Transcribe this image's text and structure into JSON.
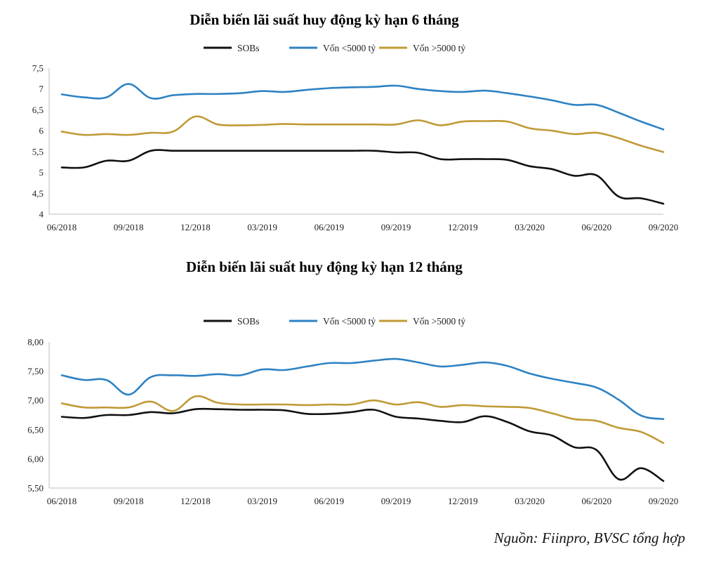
{
  "source": "Nguồn: Fiinpro, BVSC tổng hợp",
  "colors": {
    "SOBs": "#111111",
    "Vốn <5000 tỷ": "#2e82c3",
    "Vốn >5000 tỷ": "#bf9a36"
  },
  "chart_data": [
    {
      "type": "line",
      "title": "Diễn biến lãi suất huy động kỳ hạn 6 tháng",
      "xlabel": "",
      "ylabel": "",
      "ylim": [
        4,
        7.5
      ],
      "ytick_labels": [
        "4",
        "4,5",
        "5",
        "5,5",
        "6",
        "6,5",
        "7",
        "7,5"
      ],
      "xtick_labels": [
        "06/2018",
        "09/2018",
        "12/2018",
        "03/2019",
        "06/2019",
        "09/2019",
        "12/2019",
        "03/2020",
        "06/2020",
        "09/2020"
      ],
      "legend": "top-center",
      "grid": false,
      "x": [
        "06/2018",
        "07/2018",
        "08/2018",
        "09/2018",
        "10/2018",
        "11/2018",
        "12/2018",
        "01/2019",
        "02/2019",
        "03/2019",
        "04/2019",
        "05/2019",
        "06/2019",
        "07/2019",
        "08/2019",
        "09/2019",
        "10/2019",
        "11/2019",
        "12/2019",
        "01/2020",
        "02/2020",
        "03/2020",
        "04/2020",
        "05/2020",
        "06/2020",
        "07/2020",
        "08/2020",
        "09/2020"
      ],
      "series": [
        {
          "name": "SOBs",
          "values": [
            5.12,
            5.12,
            5.28,
            5.28,
            5.52,
            5.52,
            5.52,
            5.52,
            5.52,
            5.52,
            5.52,
            5.52,
            5.52,
            5.52,
            5.52,
            5.48,
            5.47,
            5.32,
            5.32,
            5.32,
            5.3,
            5.15,
            5.08,
            4.92,
            4.93,
            4.42,
            4.38,
            4.25
          ]
        },
        {
          "name": "Vốn <5000 tỷ",
          "values": [
            6.87,
            6.8,
            6.8,
            7.12,
            6.78,
            6.85,
            6.88,
            6.88,
            6.9,
            6.95,
            6.93,
            6.98,
            7.02,
            7.04,
            7.05,
            7.08,
            7.0,
            6.95,
            6.93,
            6.96,
            6.9,
            6.82,
            6.73,
            6.62,
            6.62,
            6.43,
            6.22,
            6.03
          ]
        },
        {
          "name": "Vốn >5000 tỷ",
          "values": [
            5.98,
            5.9,
            5.92,
            5.9,
            5.95,
            5.98,
            6.34,
            6.15,
            6.13,
            6.14,
            6.16,
            6.15,
            6.15,
            6.15,
            6.15,
            6.15,
            6.25,
            6.13,
            6.22,
            6.23,
            6.22,
            6.06,
            6.0,
            5.92,
            5.95,
            5.82,
            5.64,
            5.49
          ]
        }
      ]
    },
    {
      "type": "line",
      "title": "Diễn biến lãi suất huy động kỳ hạn 12 tháng",
      "xlabel": "",
      "ylabel": "",
      "ylim": [
        5.5,
        8.0
      ],
      "ytick_labels": [
        "5,50",
        "6,00",
        "6,50",
        "7,00",
        "7,50",
        "8,00"
      ],
      "xtick_labels": [
        "06/2018",
        "09/2018",
        "12/2018",
        "03/2019",
        "06/2019",
        "09/2019",
        "12/2019",
        "03/2020",
        "06/2020",
        "09/2020"
      ],
      "legend": "top-center",
      "grid": false,
      "x": [
        "06/2018",
        "07/2018",
        "08/2018",
        "09/2018",
        "10/2018",
        "11/2018",
        "12/2018",
        "01/2019",
        "02/2019",
        "03/2019",
        "04/2019",
        "05/2019",
        "06/2019",
        "07/2019",
        "08/2019",
        "09/2019",
        "10/2019",
        "11/2019",
        "12/2019",
        "01/2020",
        "02/2020",
        "03/2020",
        "04/2020",
        "05/2020",
        "06/2020",
        "07/2020",
        "08/2020",
        "09/2020"
      ],
      "series": [
        {
          "name": "SOBs",
          "values": [
            6.72,
            6.7,
            6.75,
            6.75,
            6.8,
            6.78,
            6.85,
            6.85,
            6.84,
            6.84,
            6.83,
            6.77,
            6.77,
            6.8,
            6.84,
            6.72,
            6.69,
            6.65,
            6.63,
            6.73,
            6.63,
            6.47,
            6.4,
            6.2,
            6.15,
            5.65,
            5.84,
            5.62
          ]
        },
        {
          "name": "Vốn <5000 tỷ",
          "values": [
            7.43,
            7.35,
            7.35,
            7.1,
            7.4,
            7.43,
            7.42,
            7.45,
            7.43,
            7.53,
            7.52,
            7.58,
            7.64,
            7.64,
            7.68,
            7.71,
            7.65,
            7.58,
            7.61,
            7.65,
            7.59,
            7.46,
            7.37,
            7.3,
            7.22,
            7.01,
            6.74,
            6.68
          ]
        },
        {
          "name": "Vốn >5000 tỷ",
          "values": [
            6.95,
            6.88,
            6.88,
            6.88,
            6.98,
            6.82,
            7.07,
            6.96,
            6.93,
            6.93,
            6.93,
            6.92,
            6.93,
            6.93,
            7.0,
            6.93,
            6.97,
            6.89,
            6.92,
            6.9,
            6.89,
            6.87,
            6.78,
            6.68,
            6.65,
            6.53,
            6.46,
            6.27
          ]
        }
      ]
    }
  ]
}
